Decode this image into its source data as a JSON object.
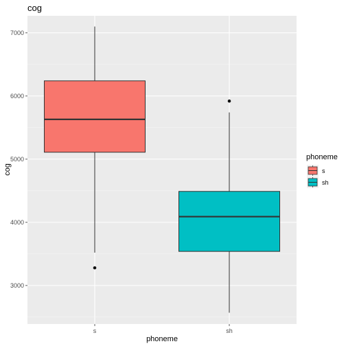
{
  "chart_data": {
    "type": "box",
    "title": "cog",
    "xlabel": "phoneme",
    "ylabel": "cog",
    "ylim": [
      2390,
      7270
    ],
    "yticks": [
      3000,
      4000,
      5000,
      6000,
      7000
    ],
    "categories": [
      "s",
      "sh"
    ],
    "grid": true,
    "legend": {
      "title": "phoneme",
      "placement": "right",
      "entries": [
        {
          "label": "s",
          "color": "#F8766D"
        },
        {
          "label": "sh",
          "color": "#00BFC4"
        }
      ]
    },
    "boxes": [
      {
        "category": "s",
        "color": "#F8766D",
        "whisker_low": 3520,
        "q1": 5110,
        "median": 5630,
        "q3": 6240,
        "whisker_high": 7100,
        "outliers": [
          3280
        ]
      },
      {
        "category": "sh",
        "color": "#00BFC4",
        "whisker_low": 2570,
        "q1": 3540,
        "median": 4090,
        "q3": 4490,
        "whisker_high": 5740,
        "outliers": [
          5920
        ]
      }
    ]
  },
  "colors": {
    "panel_background": "#EBEBEB",
    "grid_major": "#FFFFFF",
    "box_outline": "#333333"
  }
}
